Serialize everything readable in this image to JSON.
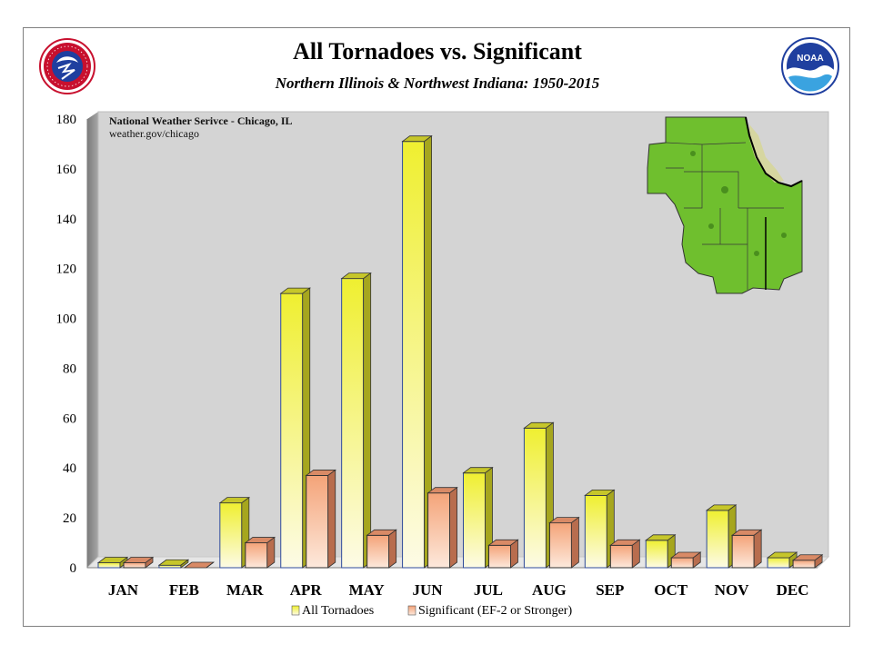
{
  "chart_data": {
    "type": "bar",
    "title": "All Tornadoes vs. Significant",
    "subtitle": "Northern Illinois & Northwest Indiana:  1950-2015",
    "annotation": {
      "line1": "National Weather Serivce - Chicago, IL",
      "line2": "weather.gov/chicago"
    },
    "categories": [
      "JAN",
      "FEB",
      "MAR",
      "APR",
      "MAY",
      "JUN",
      "JUL",
      "AUG",
      "SEP",
      "OCT",
      "NOV",
      "DEC"
    ],
    "series": [
      {
        "name": "All Tornadoes",
        "values": [
          2,
          1,
          26,
          110,
          116,
          171,
          38,
          56,
          29,
          11,
          23,
          4
        ],
        "color": "#f0f03a"
      },
      {
        "name": "Significant (EF-2 or Stronger)",
        "values": [
          2,
          0,
          10,
          37,
          13,
          30,
          9,
          18,
          9,
          4,
          13,
          3
        ],
        "color": "#f5a47c"
      }
    ],
    "ylim": [
      0,
      180
    ],
    "yticks": [
      0,
      20,
      40,
      60,
      80,
      100,
      120,
      140,
      160,
      180
    ],
    "grid": false,
    "legend_position": "bottom",
    "plot_background": "#d4d4d4",
    "side_wall_color": "#8a8a8a"
  },
  "logos": {
    "nws": {
      "text": "NATIONAL WEATHER SERVICE",
      "colors": [
        "#c8102e",
        "#1f3f9f"
      ]
    },
    "noaa": {
      "text": "NOAA",
      "colors": [
        "#1f3f9f",
        "#3aa3e0"
      ]
    }
  },
  "map_colors": [
    "#6fbf2e",
    "#4a8f1e",
    "#d6d69a"
  ]
}
